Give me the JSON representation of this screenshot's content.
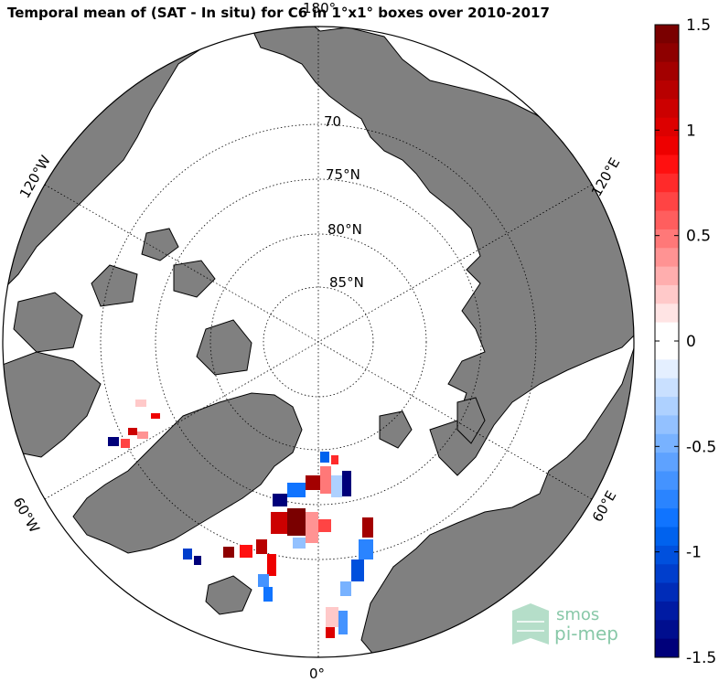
{
  "title": "Temporal mean of (SAT - In situ) for C6 in 1°x1° boxes over 2010-2017",
  "map": {
    "projection": "north-polar-stereographic",
    "latitude_labels": [
      "70",
      "75°N",
      "80°N",
      "85°N"
    ],
    "longitude_labels": {
      "top": "180°",
      "upper_left": "120°W",
      "upper_right": "120°E",
      "lower_left": "60°W",
      "lower_right": "60°E",
      "bottom": "0°"
    },
    "land_color": "#808080",
    "ocean_color": "#ffffff"
  },
  "colorbar": {
    "range": [
      -1.5,
      1.5
    ],
    "tick_values": [
      1.5,
      1,
      0.5,
      0,
      -0.5,
      -1,
      -1.5
    ],
    "tick_labels": [
      "1.5",
      "1",
      "0.5",
      "0",
      "-0.5",
      "-1",
      "-1.5"
    ],
    "colors": [
      "#7a0000",
      "#8e0000",
      "#a30000",
      "#b80000",
      "#cc0000",
      "#dd0000",
      "#ee0000",
      "#ff1010",
      "#ff2a2a",
      "#ff4444",
      "#ff5e5e",
      "#ff7878",
      "#ff9393",
      "#ffaeae",
      "#ffc9c9",
      "#ffe4e4",
      "#ffffff",
      "#ffffff",
      "#e4efff",
      "#c9e0ff",
      "#aed1ff",
      "#93c1ff",
      "#78b2ff",
      "#5ea2ff",
      "#4493ff",
      "#2a84ff",
      "#1074ff",
      "#0062ee",
      "#0050dd",
      "#003ecc",
      "#002cb8",
      "#001ba3",
      "#000e8e",
      "#00007a"
    ]
  },
  "logo": {
    "line1": "smos",
    "line2": "pi-mep"
  }
}
